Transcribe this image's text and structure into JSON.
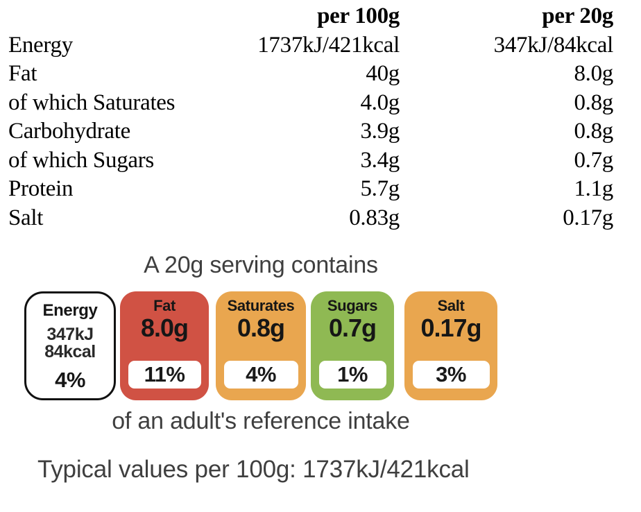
{
  "colors": {
    "red": "#D05244",
    "amber": "#E9A64F",
    "green": "#8FB953",
    "energy_border": "#111111",
    "caption_gray": "#3F3F3F"
  },
  "nutrition_table": {
    "col_headers": {
      "per_100g": "per 100g",
      "per_20g": "per 20g"
    },
    "rows": [
      {
        "label": "Energy",
        "per_100g": "1737kJ/421kcal",
        "per_20g": "347kJ/84kcal"
      },
      {
        "label": "Fat",
        "per_100g": "40g",
        "per_20g": "8.0g"
      },
      {
        "label": "of which Saturates",
        "per_100g": "4.0g",
        "per_20g": "0.8g"
      },
      {
        "label": "Carbohydrate",
        "per_100g": "3.9g",
        "per_20g": "0.8g"
      },
      {
        "label": "of which Sugars",
        "per_100g": "3.4g",
        "per_20g": "0.7g"
      },
      {
        "label": "Protein",
        "per_100g": "5.7g",
        "per_20g": "1.1g"
      },
      {
        "label": "Salt",
        "per_100g": "0.83g",
        "per_20g": "0.17g"
      }
    ]
  },
  "traffic_light": {
    "heading": "A 20g serving contains",
    "badges": [
      {
        "label": "Energy",
        "value_lines": [
          "347kJ",
          "84kcal"
        ],
        "percent": "4%",
        "style": "outline",
        "border_color": "#111111"
      },
      {
        "label": "Fat",
        "value": "8.0g",
        "percent": "11%",
        "color": "#D05244"
      },
      {
        "label": "Saturates",
        "value": "0.8g",
        "percent": "4%",
        "color": "#E9A64F"
      },
      {
        "label": "Sugars",
        "value": "0.7g",
        "percent": "1%",
        "color": "#8FB953"
      },
      {
        "label": "Salt",
        "value": "0.17g",
        "percent": "3%",
        "color": "#E9A64F"
      }
    ],
    "footnote": "of an adult's reference intake"
  },
  "typical_values_note": "Typical values per 100g: 1737kJ/421kcal"
}
